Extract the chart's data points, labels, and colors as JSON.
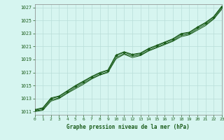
{
  "title": "Graphe pression niveau de la mer (hPa)",
  "bg_color": "#d6f5f0",
  "grid_color": "#b8ddd8",
  "line_color": "#1a5c1a",
  "marker_color": "#1a5c1a",
  "xlim": [
    0,
    23
  ],
  "ylim": [
    1010.5,
    1027.5
  ],
  "yticks": [
    1011,
    1013,
    1015,
    1017,
    1019,
    1021,
    1023,
    1025,
    1027
  ],
  "xticks": [
    0,
    1,
    2,
    3,
    4,
    5,
    6,
    7,
    8,
    9,
    10,
    11,
    12,
    13,
    14,
    15,
    16,
    17,
    18,
    19,
    20,
    21,
    22,
    23
  ],
  "series": [
    [
      1011.2,
      1011.5,
      1013.0,
      1013.3,
      1014.1,
      1014.9,
      1015.6,
      1016.3,
      1016.9,
      1017.3,
      1019.6,
      1020.1,
      1019.7,
      1019.9,
      1020.6,
      1021.1,
      1021.6,
      1022.1,
      1022.9,
      1023.1,
      1023.9,
      1024.6,
      1025.5,
      1027.1
    ],
    [
      1011.0,
      1011.2,
      1012.6,
      1013.0,
      1013.8,
      1014.5,
      1015.2,
      1016.0,
      1016.6,
      1017.0,
      1019.1,
      1019.8,
      1019.3,
      1019.6,
      1020.3,
      1020.8,
      1021.3,
      1021.8,
      1022.5,
      1022.8,
      1023.5,
      1024.2,
      1025.2,
      1026.7
    ],
    [
      1011.1,
      1011.3,
      1012.8,
      1013.1,
      1013.9,
      1014.7,
      1015.4,
      1016.1,
      1016.7,
      1017.1,
      1019.3,
      1019.9,
      1019.5,
      1019.7,
      1020.4,
      1020.9,
      1021.4,
      1021.9,
      1022.7,
      1022.9,
      1023.7,
      1024.4,
      1025.3,
      1026.9
    ],
    [
      1011.3,
      1011.6,
      1013.1,
      1013.4,
      1014.2,
      1015.0,
      1015.7,
      1016.4,
      1017.0,
      1017.4,
      1019.7,
      1020.2,
      1019.8,
      1020.0,
      1020.7,
      1021.2,
      1021.7,
      1022.2,
      1023.0,
      1023.2,
      1024.0,
      1024.7,
      1025.6,
      1027.2
    ]
  ]
}
